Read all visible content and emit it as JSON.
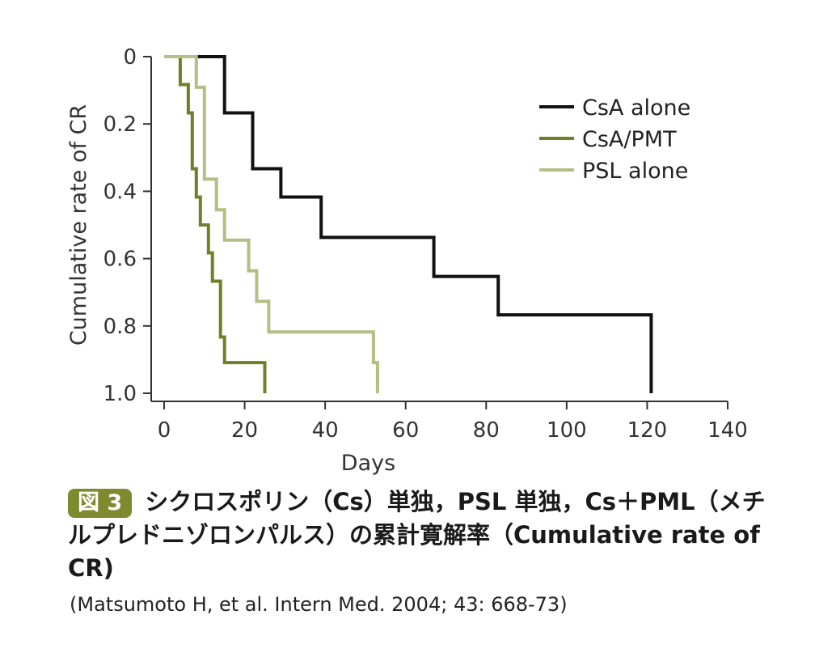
{
  "chart_data": {
    "type": "line",
    "step": true,
    "title": "",
    "xlabel": "Days",
    "ylabel": "Cumulative rate of CR",
    "xlim": [
      0,
      140
    ],
    "ylim": [
      0,
      1.0
    ],
    "y_inverted": true,
    "xticks": [
      0,
      20,
      40,
      60,
      80,
      100,
      120,
      140
    ],
    "xtick_labels": [
      "0",
      "20",
      "40",
      "60",
      "80",
      "100",
      "120",
      "140"
    ],
    "yticks": [
      0,
      0.2,
      0.4,
      0.6,
      0.8,
      1.0
    ],
    "ytick_labels": [
      "0",
      "0.2",
      "0.4",
      "0.6",
      "0.8",
      "1.0"
    ],
    "grid": false,
    "legend_position": "top-right",
    "series": [
      {
        "name": "CsA alone",
        "color": "#111111",
        "x": [
          0,
          15,
          22,
          29,
          39,
          67,
          83,
          121
        ],
        "y": [
          0,
          0.167,
          0.333,
          0.417,
          0.537,
          0.653,
          0.767,
          1.0
        ]
      },
      {
        "name": "CsA/PMT",
        "color": "#6f8128",
        "x": [
          0,
          4,
          6,
          7,
          8,
          9,
          11,
          12,
          14,
          15,
          25
        ],
        "y": [
          0,
          0.083,
          0.167,
          0.333,
          0.417,
          0.5,
          0.583,
          0.667,
          0.833,
          0.909,
          1.0
        ]
      },
      {
        "name": "PSL alone",
        "color": "#b5be84",
        "x": [
          0,
          8,
          10,
          13,
          15,
          21,
          23,
          26,
          52,
          53
        ],
        "y": [
          0,
          0.091,
          0.364,
          0.455,
          0.545,
          0.636,
          0.727,
          0.818,
          0.909,
          1.0
        ]
      }
    ]
  },
  "caption": {
    "badge": "図 3",
    "text": "シクロスポリン（Cs）単独，PSL 単独，Cs＋PML（メチルプレドニゾロンパルス）の累計寛解率（Cumulative rate of CR)"
  },
  "citation": "(Matsumoto H, et al. Intern Med. 2004; 43: 668-73)"
}
